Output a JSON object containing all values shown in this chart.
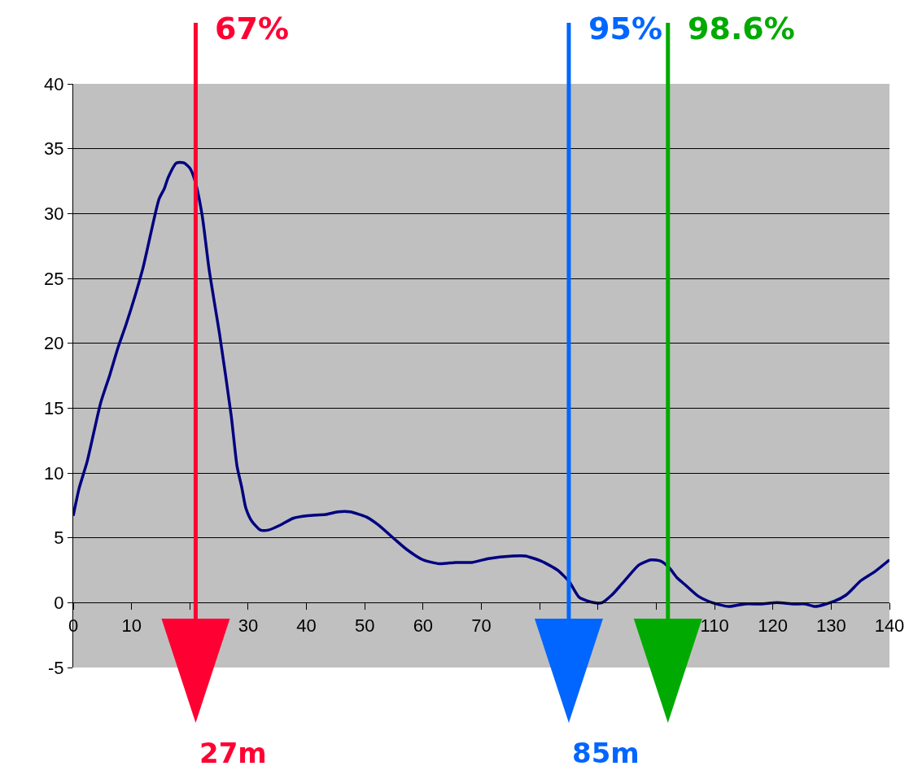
{
  "chart_data": {
    "type": "line",
    "x": [
      0,
      1,
      2.4,
      4.7,
      6.3,
      7.7,
      9.1,
      11.9,
      14.7,
      15.6,
      16.3,
      17.7,
      19,
      20,
      20.9,
      22.1,
      23.3,
      24.3,
      25.1,
      27.1,
      28.1,
      28.9,
      29.6,
      30.6,
      32.1,
      33.5,
      35.6,
      37.7,
      40.2,
      43.3,
      45.4,
      47.5,
      50.3,
      52.3,
      55.1,
      57.2,
      60,
      62.8,
      65.6,
      68.4,
      71.2,
      75.4,
      77.5,
      80.3,
      83.1,
      85.1,
      86.8,
      89.3,
      90.7,
      92.4,
      94.6,
      97,
      99.1,
      100.8,
      102.2,
      103.6,
      104.9,
      107.2,
      109.6,
      112.4,
      115.2,
      118,
      120.7,
      123.5,
      125.6,
      127.3,
      130.5,
      132.6,
      135.1,
      137.5,
      140
    ],
    "series": [
      {
        "color": "#000080",
        "values": [
          6.7,
          8.8,
          10.9,
          15.4,
          17.6,
          19.7,
          21.5,
          25.7,
          31.1,
          31.9,
          32.8,
          33.9,
          33.9,
          33.5,
          32.5,
          29.9,
          25.7,
          22.9,
          20.7,
          14.4,
          10.5,
          8.9,
          7.3,
          6.3,
          5.6,
          5.6,
          6,
          6.5,
          6.7,
          6.8,
          7,
          7,
          6.6,
          6,
          4.9,
          4.1,
          3.3,
          3,
          3.1,
          3.1,
          3.4,
          3.6,
          3.6,
          3.2,
          2.5,
          1.6,
          0.4,
          0,
          0,
          0.6,
          1.7,
          2.9,
          3.3,
          3.2,
          2.7,
          1.9,
          1.4,
          0.5,
          0,
          -0.3,
          -0.1,
          -0.1,
          0,
          -0.1,
          -0.1,
          -0.3,
          0.1,
          0.6,
          1.7,
          2.4,
          3.3
        ]
      }
    ],
    "xlim": [
      0,
      140
    ],
    "xticks": [
      0,
      10,
      {
        "value": 20,
        "label": null
      },
      30,
      40,
      50,
      60,
      70,
      {
        "value": 80,
        "label": null
      },
      {
        "value": 90,
        "label": null
      },
      {
        "value": 100,
        "label": null
      },
      110,
      120,
      130,
      140
    ],
    "ylim": [
      -5,
      40
    ],
    "yticks": [
      -5,
      0,
      5,
      10,
      15,
      20,
      25,
      30,
      35,
      40
    ],
    "grid": "y",
    "marker": "none",
    "line_style": "solid",
    "ref_lines": [
      {
        "axis": "x",
        "value": 21,
        "color": "#ff0033"
      },
      {
        "axis": "x",
        "value": 85,
        "color": "#0066ff"
      },
      {
        "axis": "x",
        "value": 102,
        "color": "#00aa00"
      }
    ],
    "annotations": [
      "67%",
      "95%",
      "98.6%",
      "27m",
      "85m"
    ]
  }
}
